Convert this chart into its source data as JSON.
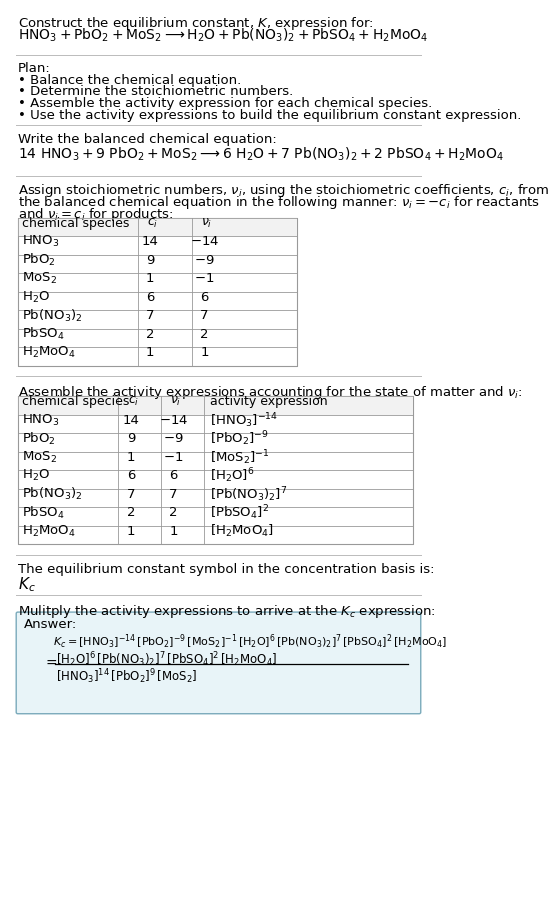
{
  "title_line1": "Construct the equilibrium constant, $K$, expression for:",
  "title_line2": "$\\mathrm{HNO_3 + PbO_2 + MoS_2 \\longrightarrow H_2O + Pb(NO_3)_2 + PbSO_4 + H_2MoO_4}$",
  "plan_header": "Plan:",
  "plan_items": [
    "\\textbf{\\cdot} Balance the chemical equation.",
    "\\textbf{\\cdot} Determine the stoichiometric numbers.",
    "\\textbf{\\cdot} Assemble the activity expression for each chemical species.",
    "\\textbf{\\cdot} Use the activity expressions to build the equilibrium constant expression."
  ],
  "balanced_header": "Write the balanced chemical equation:",
  "balanced_eq": "$14\\ \\mathrm{HNO_3 + 9\\ PbO_2 + MoS_2} \\longrightarrow 6\\ \\mathrm{H_2O + 7\\ Pb(NO_3)_2 + 2\\ PbSO_4 + H_2MoO_4}$",
  "stoich_intro1": "Assign stoichiometric numbers, $\\nu_i$, using the stoichiometric coefficients, $c_i$, from",
  "stoich_intro2": "the balanced chemical equation in the following manner: $\\nu_i = -c_i$ for reactants",
  "stoich_intro3": "and $\\nu_i = c_i$ for products:",
  "table1_headers": [
    "chemical species",
    "$c_i$",
    "$\\nu_i$"
  ],
  "table1_rows": [
    [
      "$\\mathrm{HNO_3}$",
      "14",
      "$-14$"
    ],
    [
      "$\\mathrm{PbO_2}$",
      "9",
      "$-9$"
    ],
    [
      "$\\mathrm{MoS_2}$",
      "1",
      "$-1$"
    ],
    [
      "$\\mathrm{H_2O}$",
      "6",
      "6"
    ],
    [
      "$\\mathrm{Pb(NO_3)_2}$",
      "7",
      "7"
    ],
    [
      "$\\mathrm{PbSO_4}$",
      "2",
      "2"
    ],
    [
      "$\\mathrm{H_2MoO_4}$",
      "1",
      "1"
    ]
  ],
  "activity_intro": "Assemble the activity expressions accounting for the state of matter and $\\nu_i$:",
  "table2_headers": [
    "chemical species",
    "$c_i$",
    "$\\nu_i$",
    "activity expression"
  ],
  "table2_rows": [
    [
      "$\\mathrm{HNO_3}$",
      "14",
      "$-14$",
      "$[\\mathrm{HNO_3}]^{-14}$"
    ],
    [
      "$\\mathrm{PbO_2}$",
      "9",
      "$-9$",
      "$[\\mathrm{PbO_2}]^{-9}$"
    ],
    [
      "$\\mathrm{MoS_2}$",
      "1",
      "$-1$",
      "$[\\mathrm{MoS_2}]^{-1}$"
    ],
    [
      "$\\mathrm{H_2O}$",
      "6",
      "6",
      "$[\\mathrm{H_2O}]^6$"
    ],
    [
      "$\\mathrm{Pb(NO_3)_2}$",
      "7",
      "7",
      "$[\\mathrm{Pb(NO_3)_2}]^7$"
    ],
    [
      "$\\mathrm{PbSO_4}$",
      "2",
      "2",
      "$[\\mathrm{PbSO_4}]^2$"
    ],
    [
      "$\\mathrm{H_2MoO_4}$",
      "1",
      "1",
      "$[\\mathrm{H_2MoO_4}]$"
    ]
  ],
  "kc_header": "The equilibrium constant symbol in the concentration basis is:",
  "kc_symbol": "$K_c$",
  "multiply_header": "Mulitply the activity expressions to arrive at the $K_c$ expression:",
  "answer_label": "Answer:",
  "kc_line1": "$K_c = [\\mathrm{HNO_3}]^{-14}\\,[\\mathrm{PbO_2}]^{-9}\\,[\\mathrm{MoS_2}]^{-1}\\,[\\mathrm{H_2O}]^6\\,[\\mathrm{Pb(NO_3)_2}]^7\\,[\\mathrm{PbSO_4}]^2\\,[\\mathrm{H_2MoO_4}]$",
  "kc_eq_sign": "$=$",
  "kc_line2_num": "$[\\mathrm{H_2O}]^6\\,[\\mathrm{Pb(NO_3)_2}]^7\\,[\\mathrm{PbSO_4}]^2\\,[\\mathrm{H_2MoO_4}]$",
  "kc_line2_den": "$[\\mathrm{HNO_3}]^{14}\\,[\\mathrm{PbO_2}]^9\\,[\\mathrm{MoS_2}]$",
  "bg_color": "#ffffff",
  "text_color": "#000000",
  "gray_text": "#555555",
  "table_border_color": "#999999",
  "answer_box_fill": "#e8f4f8",
  "answer_box_border": "#7aaabb",
  "sep_color": "#bbbbbb"
}
